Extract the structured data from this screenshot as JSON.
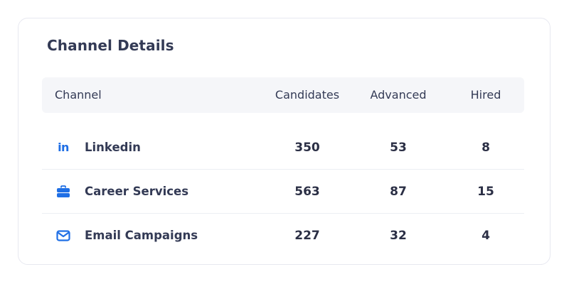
{
  "card": {
    "title": "Channel Details"
  },
  "table": {
    "headers": {
      "channel": "Channel",
      "candidates": "Candidates",
      "advanced": "Advanced",
      "hired": "Hired"
    },
    "rows": [
      {
        "icon": "linkedin-icon",
        "icon_glyph": "in",
        "channel": "Linkedin",
        "candidates": "350",
        "advanced": "53",
        "hired": "8"
      },
      {
        "icon": "briefcase-icon",
        "channel": "Career Services",
        "candidates": "563",
        "advanced": "87",
        "hired": "15"
      },
      {
        "icon": "envelope-icon",
        "channel": "Email Campaigns",
        "candidates": "227",
        "advanced": "32",
        "hired": "4"
      }
    ]
  },
  "colors": {
    "accent": "#1f6fe5",
    "text": "#333a55",
    "header_bg": "#f5f6f9",
    "border": "#e7e8f0"
  }
}
